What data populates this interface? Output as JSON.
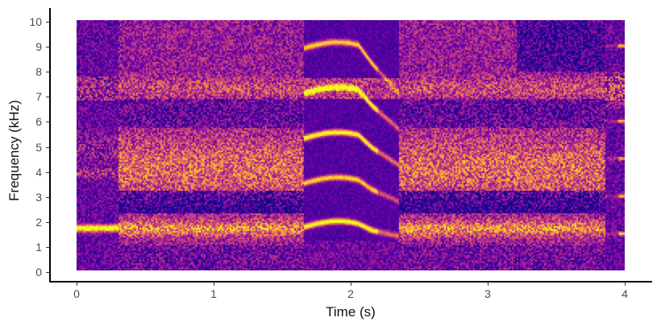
{
  "chart_data": {
    "type": "heatmap",
    "subtype": "spectrogram",
    "title": "",
    "xlabel": "Time (s)",
    "ylabel": "Frequency (kHz)",
    "xlim": [
      0,
      4
    ],
    "ylim": [
      0,
      10
    ],
    "x_ticks": [
      0,
      1,
      2,
      3,
      4
    ],
    "y_ticks": [
      0,
      1,
      2,
      3,
      4,
      5,
      6,
      7,
      8,
      9,
      10
    ],
    "grid": false,
    "legend": "none",
    "colormap": "plasma",
    "colormap_stops": [
      "#0d0887",
      "#6a00a8",
      "#b12a90",
      "#e16462",
      "#fca636",
      "#f0f921"
    ],
    "segments": [
      {
        "t_start": 0.0,
        "t_end": 0.3,
        "description": "dark background with bright tonal band ~1.7 kHz and faint 3.8-4 kHz band"
      },
      {
        "t_start": 0.3,
        "t_end": 1.65,
        "description": "broadband noise, bright energy 3.5-5 kHz, strong band ~1.5-1.8 kHz, band ~7-7.7 kHz"
      },
      {
        "t_start": 1.65,
        "t_end": 2.35,
        "description": "harmonic arched call: arcs near 1.7, 3.5, 5.3, 7.1, 8.9 kHz with descending tails"
      },
      {
        "t_start": 2.35,
        "t_end": 3.85,
        "description": "broadband noise, bright energy 3.5-5 kHz, strong band ~1.6-1.9 kHz, band ~7-7.7 kHz"
      },
      {
        "t_start": 3.85,
        "t_end": 4.0,
        "description": "sparse tones at ~1.5, 4.5, 6.0, 9.0 kHz"
      }
    ],
    "bands_khz": [
      {
        "center": 1.7,
        "width": 0.35,
        "intensity": 0.95
      },
      {
        "center": 4.0,
        "width": 1.1,
        "intensity": 0.7
      },
      {
        "center": 7.3,
        "width": 0.45,
        "intensity": 0.6
      }
    ],
    "harmonic_arcs_khz": [
      1.75,
      3.5,
      5.3,
      7.1,
      8.9
    ]
  }
}
